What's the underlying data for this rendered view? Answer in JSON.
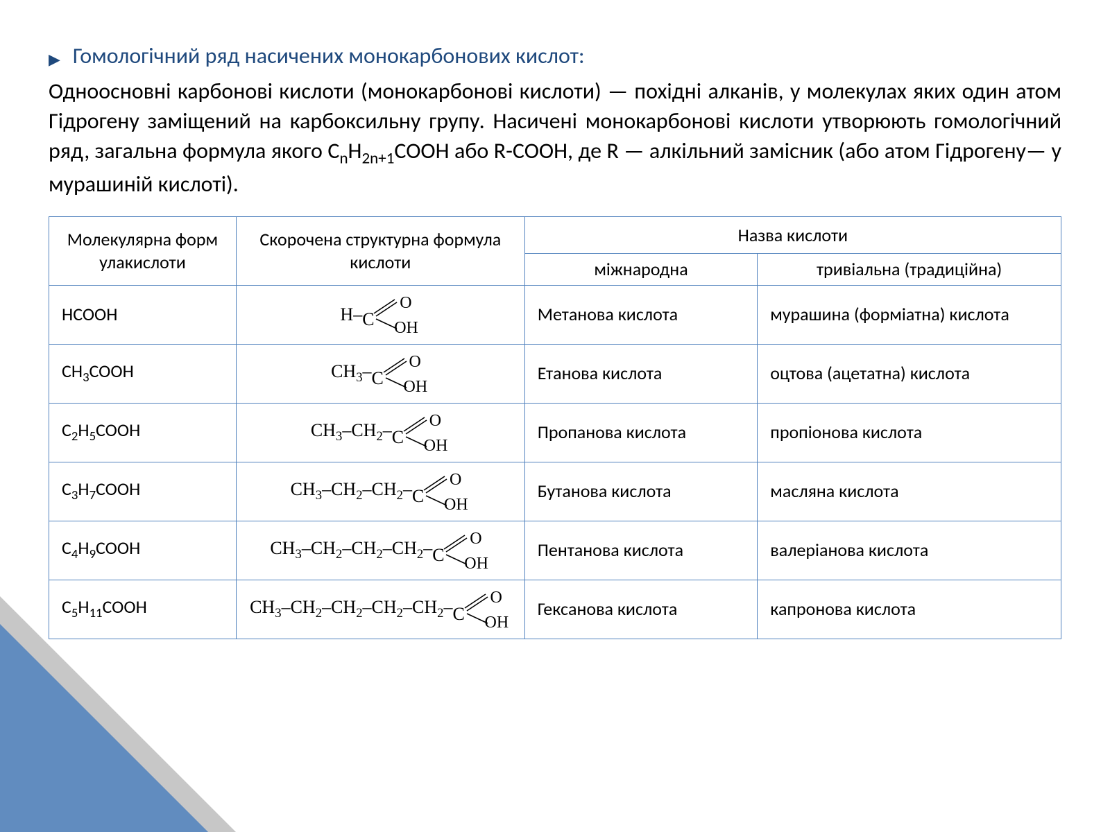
{
  "colors": {
    "accent": "#1f497d",
    "table_border": "#4f81bd",
    "text": "#000000",
    "background": "#ffffff",
    "corner_fill": "#4f81bd",
    "corner_shadow": "rgba(0,0,0,0.22)"
  },
  "typography": {
    "body_family": "Segoe UI / Calibri",
    "struct_family": "Times New Roman",
    "title_size_pt": 24,
    "body_size_pt": 24,
    "table_header_size_pt": 19,
    "table_subheader_size_pt": 16,
    "table_cell_size_pt": 19
  },
  "heading": "Гомологічний ряд насичених монокарбонових кислот:",
  "paragraph": "Одноосновні карбонові кислоти (монокарбонові кислоти) — похідні алканів, у молекулах яких один атом Гідрогену заміщений на карбоксильну групу. Насичені монокарбонові кислоти утворюють гомологічний ряд, загальна формула якого CnH2n+1COOH або R-COOH, де R — алкільний замісник (або атом Гідрогену— у мурашиній кислоті).",
  "table": {
    "type": "table",
    "border_color": "#4f81bd",
    "column_widths_pct": [
      18.5,
      28.5,
      23,
      30
    ],
    "headers": {
      "col1": "Молекулярна форм улакислоти",
      "col2": "Скорочена структурна формула кислоти",
      "name_group": "Назва кислоти",
      "name_sub1": "міжнародна",
      "name_sub2": "тривіальна (традиційна)"
    },
    "rows": [
      {
        "molecular_html": "HCOOH",
        "struct_prefix": "H–",
        "international": "Метанова кислота",
        "trivial": "мурашина (форміатна) кислота"
      },
      {
        "molecular_html": "CH<sub>3</sub>COOH",
        "struct_prefix": "CH<sub>3</sub>–",
        "international": "Етанова  кислота",
        "trivial": "оцтова (ацетатна) кислота"
      },
      {
        "molecular_html": "C<sub>2</sub>H<sub>5</sub>COOH",
        "struct_prefix": "CH<sub>3</sub>–CH<sub>2</sub>–",
        "international": "Пропанова кислота",
        "trivial": "пропіонова кислота"
      },
      {
        "molecular_html": "C<sub>3</sub>H<sub>7</sub>COOH",
        "struct_prefix": "CH<sub>3</sub>–CH<sub>2</sub>–CH<sub>2</sub>–",
        "international": "Бутанова кислота",
        "trivial": "масляна кислота"
      },
      {
        "molecular_html": "C<sub>4</sub>H<sub>9</sub>COOH",
        "struct_prefix": "CH<sub>3</sub>–CH<sub>2</sub>–CH<sub>2</sub>–CH<sub>2</sub>–",
        "international": "Пентанова кислота",
        "trivial": "валеріанова кислота"
      },
      {
        "molecular_html": "C<sub>5</sub>H<sub>11</sub>COOH",
        "struct_prefix": "CH<sub>3</sub>–CH<sub>2</sub>–CH<sub>2</sub>–CH<sub>2</sub>–CH<sub>2</sub>–",
        "international": "Гексанова кислота",
        "trivial": "капронова кислота"
      }
    ]
  }
}
